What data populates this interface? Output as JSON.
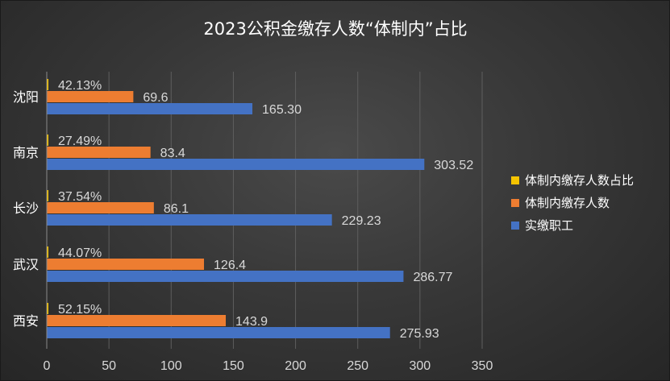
{
  "chart_data": {
    "type": "bar",
    "orientation": "horizontal",
    "title": "2023公积金缴存人数“体制内”占比",
    "categories": [
      "沈阳",
      "南京",
      "长沙",
      "武汉",
      "西安"
    ],
    "series": [
      {
        "name": "体制内缴存人数占比",
        "color": "#f5c400",
        "values": [
          0.4213,
          0.2749,
          0.3754,
          0.4407,
          0.5215
        ],
        "labels": [
          "42.13%",
          "27.49%",
          "37.54%",
          "44.07%",
          "52.15%"
        ]
      },
      {
        "name": "体制内缴存人数",
        "color": "#ed7d31",
        "values": [
          69.6,
          83.4,
          86.1,
          126.4,
          143.9
        ],
        "labels": [
          "69.6",
          "83.4",
          "86.1",
          "126.4",
          "143.9"
        ]
      },
      {
        "name": "实缴职工",
        "color": "#4472c4",
        "values": [
          165.3,
          303.52,
          229.23,
          286.77,
          275.93
        ],
        "labels": [
          "165.30",
          "303.52",
          "229.23",
          "286.77",
          "275.93"
        ]
      }
    ],
    "xlim": [
      0,
      350
    ],
    "xticks": [
      "0",
      "50",
      "100",
      "150",
      "200",
      "250",
      "300",
      "350"
    ],
    "grid": true,
    "legend_position": "right"
  }
}
